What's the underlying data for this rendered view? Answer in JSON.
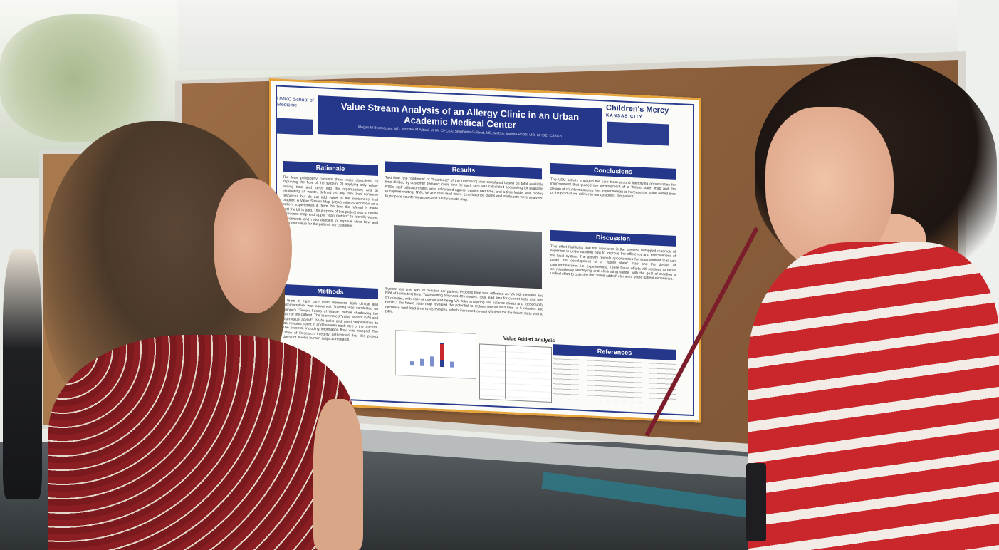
{
  "poster": {
    "title": "Value Stream Analysis of an Allergy Clinic in an Urban Academic Medical Center",
    "authors": "Megan M Byerhauser, MD; Jennifer M Ajitoni, MHA, CPCSA; Stephanie Guilbert, MD, MHSA; Martha Roddi, MD, MHDE, CSSGB",
    "logo_left": "UMKC School of Medicine",
    "logo_right": "Children's Mercy",
    "logo_right_sub": "KANSAS CITY",
    "sections": {
      "rationale": "Rationale",
      "methods": "Methods",
      "results": "Results",
      "conclusions": "Conclusions",
      "discussion": "Discussion",
      "references": "References",
      "value_added": "Value Added Analysis"
    },
    "rationale_text": "The lean philosophy consists three main objectives: 1) improving the flow of the system; 2) applying only value-adding time and steps into the organization; and 3) eliminating all waste, defined as any task that consume resources but do not add value to the customer's final product. A Value Stream Map (VSM) reflects workflow as a patient experiences it, from the time the referral is made until the bill is paid. The purpose of this project was to create a process map and apply \"lean metrics\" to identify waste, disconnects and redundancies to improve clinic flow and customer value for the patient, our customer.",
    "methods_text": "A team of eight core team members, both clinical and administrative, was convened. Training was conducted on Shingo's \"Seven Forms of Waste\" before shadowing the path of the patient. The team noted \"value added\" (VA) and \"non-value added\" (NVA) tasks and used stopwatches to talk minutes spent in and between each step of the process. The process, including information flow, was mapped. The Office of Research Integrity determined that this project does not involve human subjects research.",
    "results_text_1": "Takt time (the \"cadence\" or \"heartbeat\" of the operation) was calculated based on total available time divided by customer demand; cycle time for each step was calculated accounting for available FTEs; staff utilization rates were calculated against system takt time; and a time ladder was plotted to capture waiting, NVA, VA and total lead times. Line balance charts and starbursts were analyzed to propose countermeasures and a future state map.",
    "results_text_2": "System takt time was 20 minutes per patient. Process time was reflected as VA (42 minutes) and NVA (49 minutes) time. Total waiting time was 49 minutes. Total lead time for current state visit was 91 minutes, with 46% of overall visit being VA. After analyzing line balance charts and \"opportunity bursts,\" the future state map revealed the potential to reduce overall wait time to 5 minutes and decrease total lead time to 45 minutes, which increased overall VA time for the future state visit to 84%.",
    "conclusions_text": "The VSM activity engaged the care team around identifying opportunities for improvement that guided the development of a \"future state\" map and the design of countermeasures (i.e., experiments) to increase the value added time of the product we deliver to our customer, the patient.",
    "discussion_text": "This effort highlights that the workforce is the greatest untapped reservoir of expertise in understanding how to improve the efficiency and effectiveness of the local system. The activity reveals opportunities for improvement that can guide the development of a \"future state\" map and the design of countermeasures (i.e. experiments). These future efforts will continue to focus on relentlessly identifying and eliminating waste, with the goal of creating a unified effort to optimize the \"value added\" elements of the patient experience."
  }
}
